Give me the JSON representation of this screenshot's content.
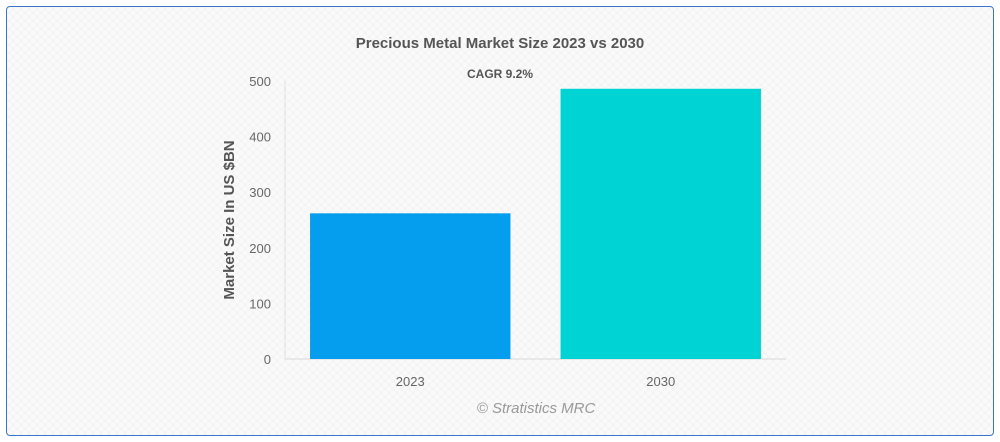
{
  "chart_data": {
    "type": "bar",
    "title": "Precious Metal Market Size 2023 vs 2030",
    "annotation": "CAGR 9.2%",
    "categories": [
      "2023",
      "2030"
    ],
    "values": [
      262,
      486
    ],
    "colors": [
      "#059ded",
      "#00d3d3"
    ],
    "xlabel": "",
    "ylabel": "Market Size In US $BN",
    "ylim": [
      0,
      500
    ],
    "yticks": [
      "0",
      "100",
      "200",
      "300",
      "400",
      "500"
    ],
    "grid": false,
    "credit": "© Stratistics MRC"
  }
}
